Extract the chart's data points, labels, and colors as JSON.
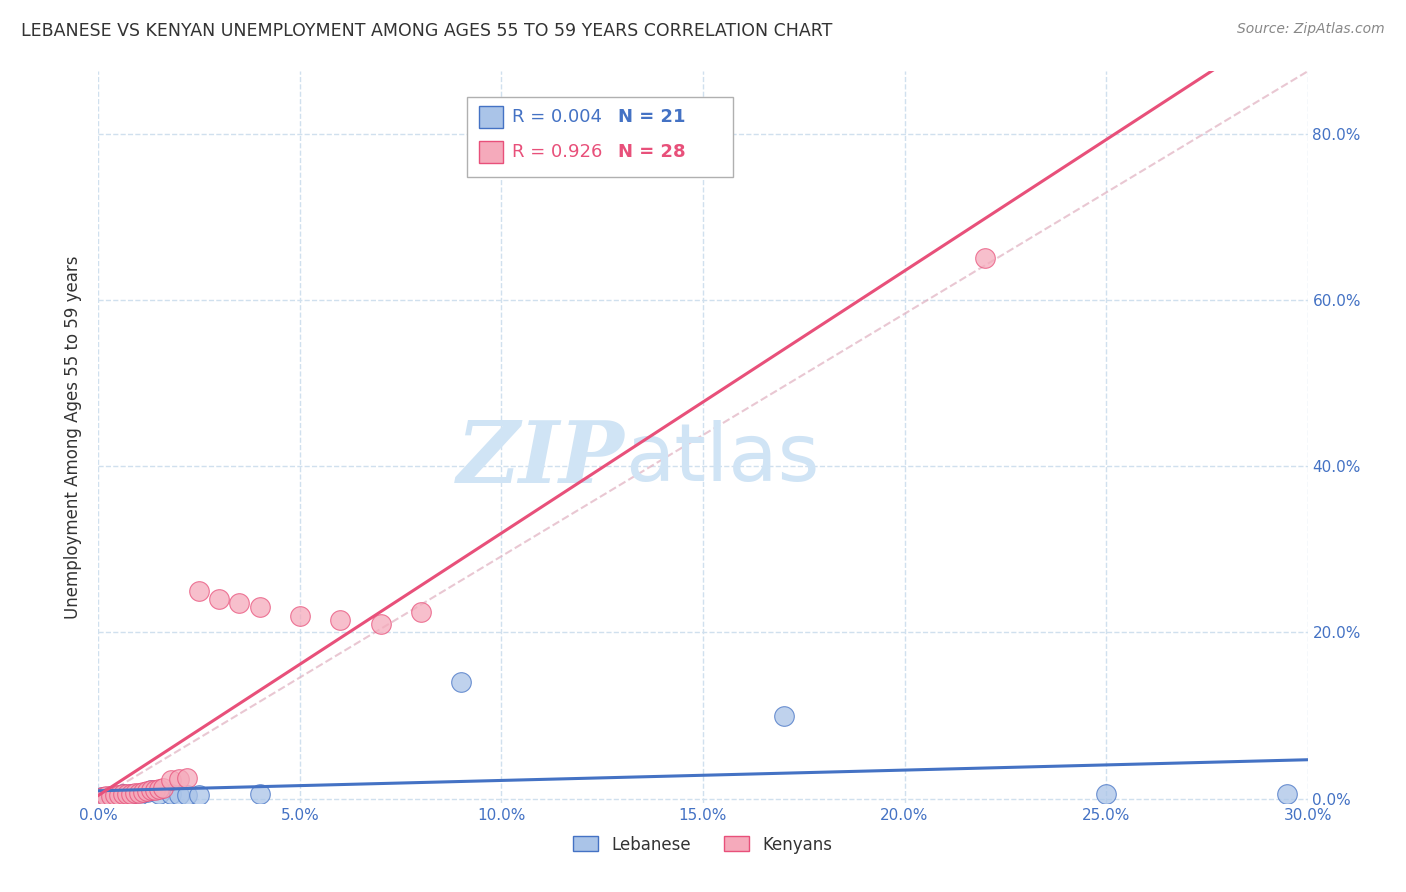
{
  "title": "LEBANESE VS KENYAN UNEMPLOYMENT AMONG AGES 55 TO 59 YEARS CORRELATION CHART",
  "source": "Source: ZipAtlas.com",
  "ylabel": "Unemployment Among Ages 55 to 59 years",
  "xlim": [
    0.0,
    0.3
  ],
  "ylim": [
    -0.005,
    0.875
  ],
  "xticks": [
    0.0,
    0.05,
    0.1,
    0.15,
    0.2,
    0.25,
    0.3
  ],
  "yticks_right": [
    0.0,
    0.2,
    0.4,
    0.6,
    0.8
  ],
  "ytick_labels_right": [
    "0.0%",
    "20.0%",
    "40.0%",
    "60.0%",
    "80.0%"
  ],
  "xtick_labels": [
    "0.0%",
    "5.0%",
    "10.0%",
    "15.0%",
    "20.0%",
    "25.0%",
    "30.0%"
  ],
  "legend_r1": "R = 0.004",
  "legend_n1": "N = 21",
  "legend_r2": "R = 0.926",
  "legend_n2": "N = 28",
  "label_lebanese": "Lebanese",
  "label_kenyans": "Kenyans",
  "color_lebanese": "#aac4e8",
  "color_kenyans": "#f5aabb",
  "color_line_lebanese": "#4472c4",
  "color_line_kenyans": "#e8507a",
  "color_axis_labels": "#4472c4",
  "color_title": "#333333",
  "color_source": "#888888",
  "watermark_zip": "ZIP",
  "watermark_atlas": "atlas",
  "watermark_color": "#d0e4f5",
  "background_color": "#ffffff",
  "grid_color": "#d0e0ee",
  "diag_color": "#e0b0c0",
  "lebanese_x": [
    0.001,
    0.002,
    0.003,
    0.004,
    0.005,
    0.006,
    0.007,
    0.008,
    0.01,
    0.012,
    0.013,
    0.015,
    0.018,
    0.02,
    0.022,
    0.025,
    0.04,
    0.09,
    0.17,
    0.25,
    0.295
  ],
  "lebanese_y": [
    0.002,
    0.002,
    0.003,
    0.002,
    0.003,
    0.005,
    0.004,
    0.005,
    0.004,
    0.008,
    0.01,
    0.005,
    0.005,
    0.004,
    0.004,
    0.004,
    0.005,
    0.14,
    0.1,
    0.005,
    0.005
  ],
  "kenyans_x": [
    0.001,
    0.002,
    0.003,
    0.004,
    0.005,
    0.006,
    0.007,
    0.008,
    0.009,
    0.01,
    0.011,
    0.012,
    0.013,
    0.014,
    0.015,
    0.016,
    0.018,
    0.02,
    0.022,
    0.025,
    0.03,
    0.035,
    0.04,
    0.05,
    0.06,
    0.07,
    0.08,
    0.22
  ],
  "kenyans_y": [
    0.002,
    0.003,
    0.003,
    0.004,
    0.004,
    0.005,
    0.005,
    0.006,
    0.007,
    0.007,
    0.008,
    0.009,
    0.01,
    0.01,
    0.012,
    0.013,
    0.022,
    0.024,
    0.025,
    0.25,
    0.24,
    0.235,
    0.23,
    0.22,
    0.215,
    0.21,
    0.225,
    0.65
  ]
}
